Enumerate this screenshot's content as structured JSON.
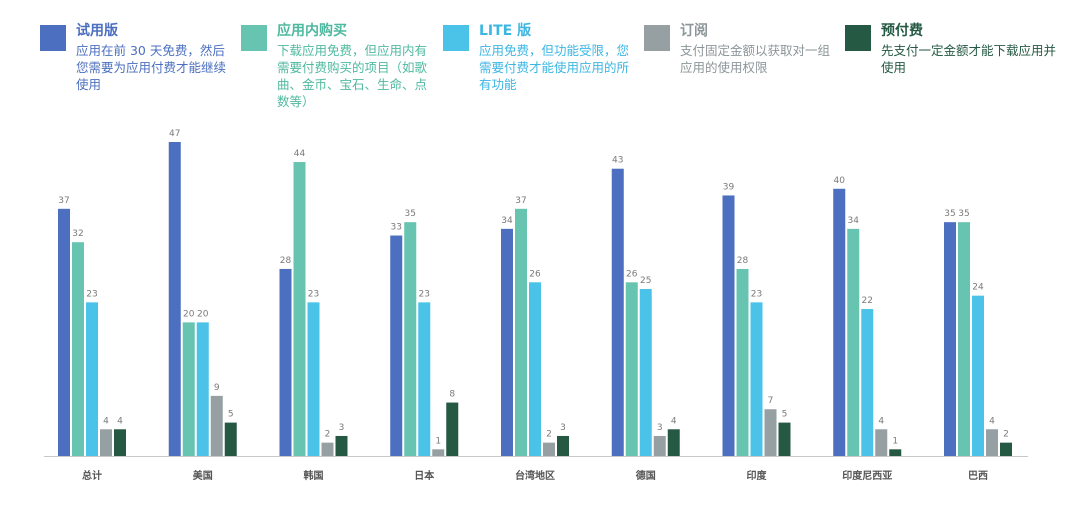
{
  "legend": [
    {
      "title": "试用版",
      "desc": "应用在前 30 天免费，然后您需要为应用付费才能继续使用",
      "color": "#4c6fbf",
      "text_color": "#4c6fbf",
      "desc_color": "#4c6fbf"
    },
    {
      "title": "应用内购买",
      "desc": "下载应用免费，但应用内有需要付费购买的项目（如歌曲、金币、宝石、生命、点数等）",
      "color": "#66c4b0",
      "text_color": "#4fb9a0",
      "desc_color": "#4fb9a0"
    },
    {
      "title": "LITE 版",
      "desc": "应用免费，但功能受限，您需要付费才能使用应用的所有功能",
      "color": "#4bc3e8",
      "text_color": "#3cb6e3",
      "desc_color": "#3cb6e3"
    },
    {
      "title": "订阅",
      "desc": "支付固定金额以获取对一组应用的使用权限",
      "color": "#96a0a2",
      "text_color": "#8c9698",
      "desc_color": "#8c9698"
    },
    {
      "title": "预付费",
      "desc": "先支付一定金额才能下载应用并使用",
      "color": "#255944",
      "text_color": "#255944",
      "desc_color": "#255944"
    }
  ],
  "chart_data": {
    "type": "bar",
    "title": "",
    "xlabel": "",
    "ylabel": "",
    "ylim": [
      0,
      47
    ],
    "grid": false,
    "categories": [
      "总计",
      "美国",
      "韩国",
      "日本",
      "台湾地区",
      "德国",
      "印度",
      "印度尼西亚",
      "巴西"
    ],
    "series": [
      {
        "name": "试用版",
        "color": "#4c6fbf",
        "values": [
          37,
          47,
          28,
          33,
          34,
          43,
          39,
          40,
          35
        ]
      },
      {
        "name": "应用内购买",
        "color": "#66c4b0",
        "values": [
          32,
          20,
          44,
          35,
          37,
          26,
          28,
          34,
          35
        ]
      },
      {
        "name": "LITE 版",
        "color": "#4bc3e8",
        "values": [
          23,
          20,
          23,
          23,
          26,
          25,
          23,
          22,
          24
        ]
      },
      {
        "name": "订阅",
        "color": "#96a0a2",
        "values": [
          4,
          9,
          2,
          1,
          2,
          3,
          7,
          4,
          4
        ]
      },
      {
        "name": "预付费",
        "color": "#255944",
        "values": [
          4,
          5,
          3,
          8,
          3,
          4,
          5,
          1,
          2
        ]
      }
    ]
  }
}
